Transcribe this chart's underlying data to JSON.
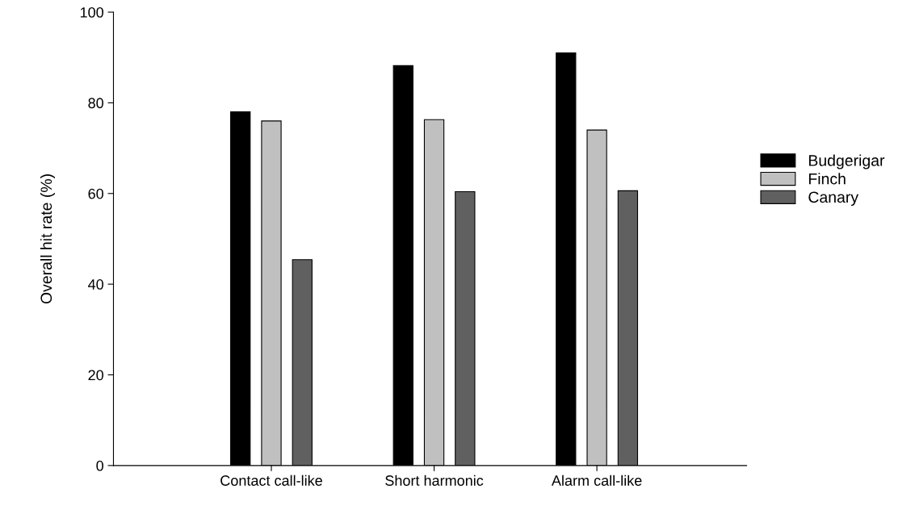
{
  "chart_data": {
    "type": "bar",
    "ylabel": "Overall hit rate (%)",
    "categories": [
      "Contact call-like",
      "Short harmonic",
      "Alarm call-like"
    ],
    "series": [
      {
        "name": "Budgerigar",
        "color": "#000000",
        "values": [
          78,
          88.2,
          91
        ]
      },
      {
        "name": "Finch",
        "color": "#c0c0c0",
        "values": [
          76,
          76.3,
          74
        ]
      },
      {
        "name": "Canary",
        "color": "#606060",
        "values": [
          45.4,
          60.4,
          60.6
        ]
      }
    ],
    "ylim": [
      0,
      100
    ],
    "yticks": [
      0,
      20,
      40,
      60,
      80,
      100
    ],
    "grid": false,
    "legend": "right"
  }
}
